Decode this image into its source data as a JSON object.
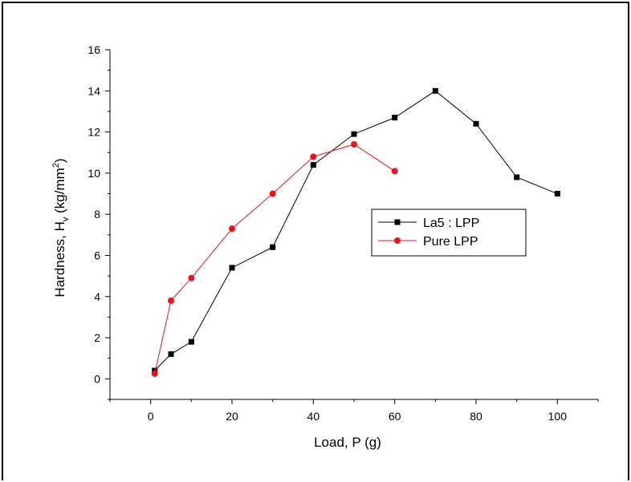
{
  "chart_data": {
    "type": "line",
    "xlabel": "Load, P (g)",
    "ylabel_main": "Hardness, H",
    "ylabel_sub": "v",
    "ylabel_unit_prefix": " (kg/mm",
    "ylabel_unit_sup": "2",
    "ylabel_unit_suffix": ")",
    "xlim": [
      -10,
      110
    ],
    "ylim": [
      -1,
      16
    ],
    "xticks": [
      0,
      20,
      40,
      60,
      80,
      100
    ],
    "yticks": [
      0,
      2,
      4,
      6,
      8,
      10,
      12,
      14,
      16
    ],
    "grid": false,
    "legend_position": "center-right",
    "series": [
      {
        "name": "La5 : LPP",
        "color": "#000000",
        "marker": "square",
        "x": [
          1,
          5,
          10,
          20,
          30,
          40,
          50,
          60,
          70,
          80,
          90,
          100
        ],
        "y": [
          0.4,
          1.2,
          1.8,
          5.4,
          6.4,
          10.4,
          11.9,
          12.7,
          14.0,
          12.4,
          9.8,
          9.0
        ]
      },
      {
        "name": "Pure LPP",
        "color": "#e8141c",
        "marker": "circle",
        "x": [
          1,
          5,
          10,
          20,
          30,
          40,
          50,
          60
        ],
        "y": [
          0.25,
          3.8,
          4.9,
          7.3,
          9.0,
          10.8,
          11.4,
          10.1
        ]
      }
    ]
  }
}
